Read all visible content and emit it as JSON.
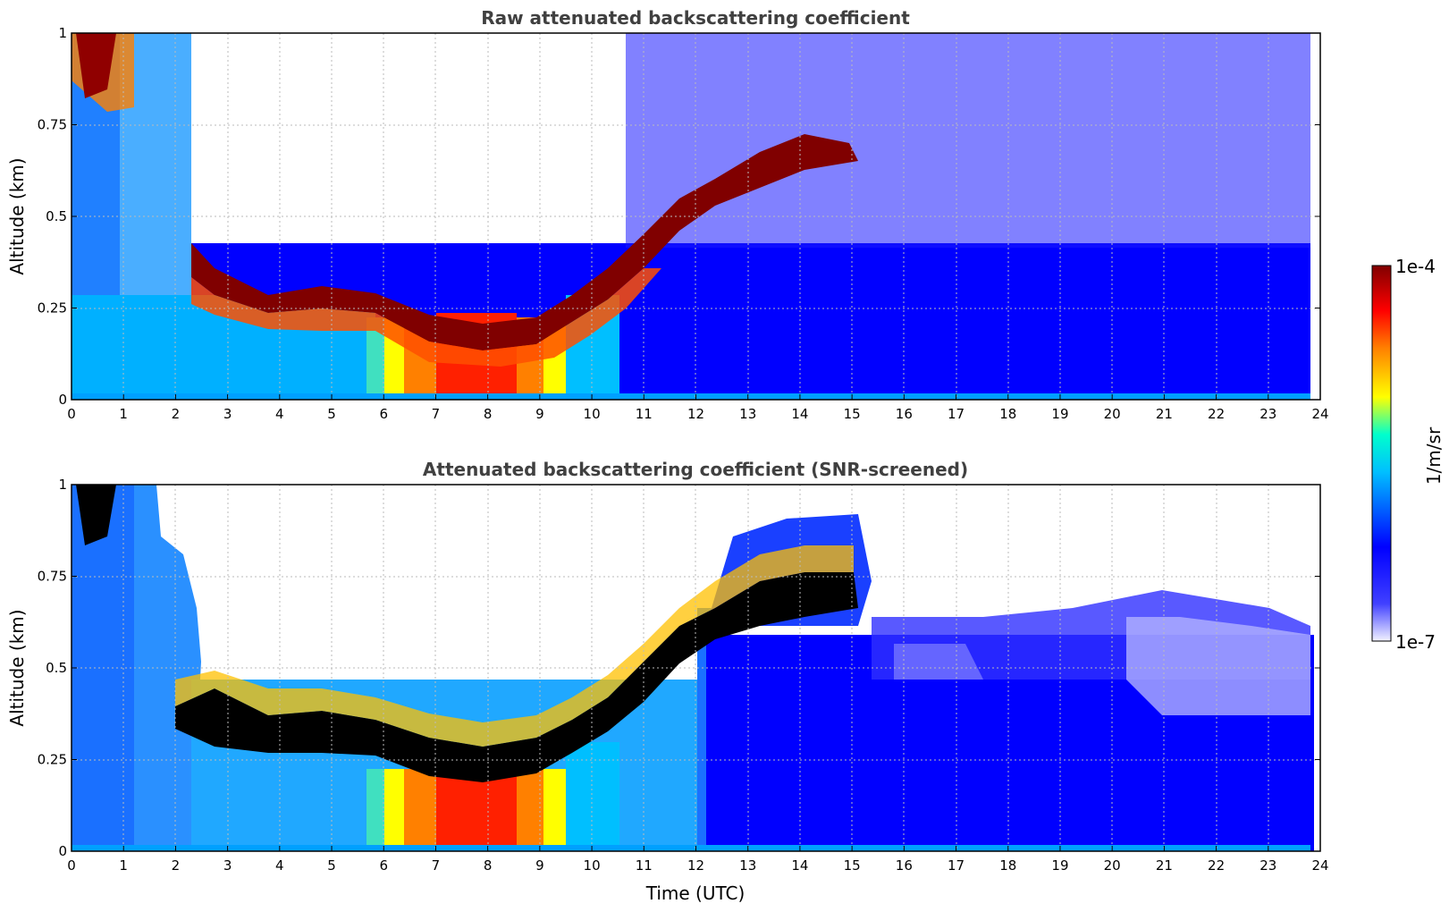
{
  "chart_data": [
    {
      "type": "heatmap",
      "title": "Raw attenuated backscattering coefficient",
      "xlabel": "",
      "ylabel": "Altitude (km)",
      "xlim": [
        0,
        24
      ],
      "ylim": [
        0,
        1
      ],
      "xticks": [
        "0",
        "1",
        "2",
        "3",
        "4",
        "5",
        "6",
        "7",
        "8",
        "9",
        "10",
        "11",
        "12",
        "13",
        "14",
        "15",
        "16",
        "17",
        "18",
        "19",
        "20",
        "21",
        "22",
        "23",
        "24"
      ],
      "yticks": [
        "0",
        "0.25",
        "0.5",
        "0.75",
        "1"
      ],
      "grid": true,
      "cloud_base_km": {
        "time": [
          2,
          2.5,
          3,
          4,
          5,
          6,
          6.5,
          7,
          8,
          9,
          9.5,
          10,
          10.5,
          11,
          11.5,
          12,
          13,
          14,
          15
        ],
        "altitude": [
          0.33,
          0.3,
          0.27,
          0.24,
          0.25,
          0.22,
          0.2,
          0.19,
          0.17,
          0.2,
          0.25,
          0.3,
          0.33,
          0.4,
          0.47,
          0.52,
          0.6,
          0.65,
          0.68
        ]
      }
    },
    {
      "type": "heatmap",
      "title": "Attenuated backscattering coefficient (SNR-screened)",
      "xlabel": "Time (UTC)",
      "ylabel": "Altitude (km)",
      "xlim": [
        0,
        24
      ],
      "ylim": [
        0,
        1
      ],
      "xticks": [
        "0",
        "1",
        "2",
        "3",
        "4",
        "5",
        "6",
        "7",
        "8",
        "9",
        "10",
        "11",
        "12",
        "13",
        "14",
        "15",
        "16",
        "17",
        "18",
        "19",
        "20",
        "21",
        "22",
        "23",
        "24"
      ],
      "yticks": [
        "0",
        "0.25",
        "0.5",
        "0.75",
        "1"
      ],
      "grid": true
    }
  ],
  "colorbar": {
    "label": "1/m/sr",
    "max_label": "1e-4",
    "min_label": "1e-7",
    "colors": [
      "#f2f2ff",
      "#0000ff",
      "#00bfff",
      "#00ffff",
      "#ffff00",
      "#ff8000",
      "#ff0000",
      "#800000"
    ]
  }
}
